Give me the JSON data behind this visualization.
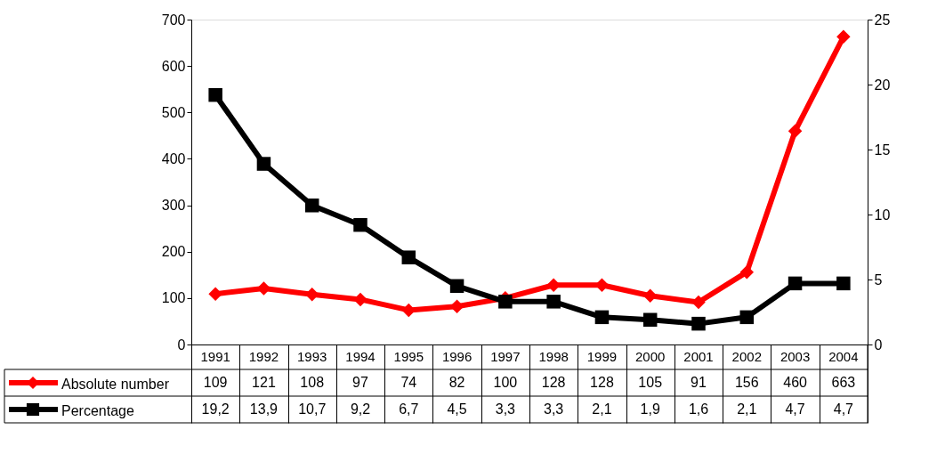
{
  "chart_data": {
    "type": "line",
    "categories": [
      "1991",
      "1992",
      "1993",
      "1994",
      "1995",
      "1996",
      "1997",
      "1998",
      "1999",
      "2000",
      "2001",
      "2002",
      "2003",
      "2004"
    ],
    "series": [
      {
        "name": "Absolute number",
        "color": "#ff0000",
        "marker": "diamond",
        "values": [
          109,
          121,
          108,
          97,
          74,
          82,
          100,
          128,
          128,
          105,
          91,
          156,
          460,
          663
        ],
        "value_labels": [
          "109",
          "121",
          "108",
          "97",
          "74",
          "82",
          "100",
          "128",
          "128",
          "105",
          "91",
          "156",
          "460",
          "663"
        ]
      },
      {
        "name": "Percentage",
        "color": "#000000",
        "marker": "square",
        "axis": "y2",
        "values": [
          19.2,
          13.9,
          10.7,
          9.2,
          6.7,
          4.5,
          3.3,
          3.3,
          2.1,
          1.9,
          1.6,
          2.1,
          4.7,
          4.7
        ],
        "value_labels": [
          "19,2",
          "13,9",
          "10,7",
          "9,2",
          "6,7",
          "4,5",
          "3,3",
          "3,3",
          "2,1",
          "1,9",
          "1,6",
          "2,1",
          "4,7",
          "4,7"
        ]
      }
    ],
    "ylim": [
      0,
      700
    ],
    "yticks": [
      0,
      100,
      200,
      300,
      400,
      500,
      600,
      700
    ],
    "y2lim": [
      0,
      25
    ],
    "y2ticks": [
      0,
      5,
      10,
      15,
      20,
      25
    ],
    "grid": false,
    "legend": "bottom",
    "line_style": "solid"
  }
}
